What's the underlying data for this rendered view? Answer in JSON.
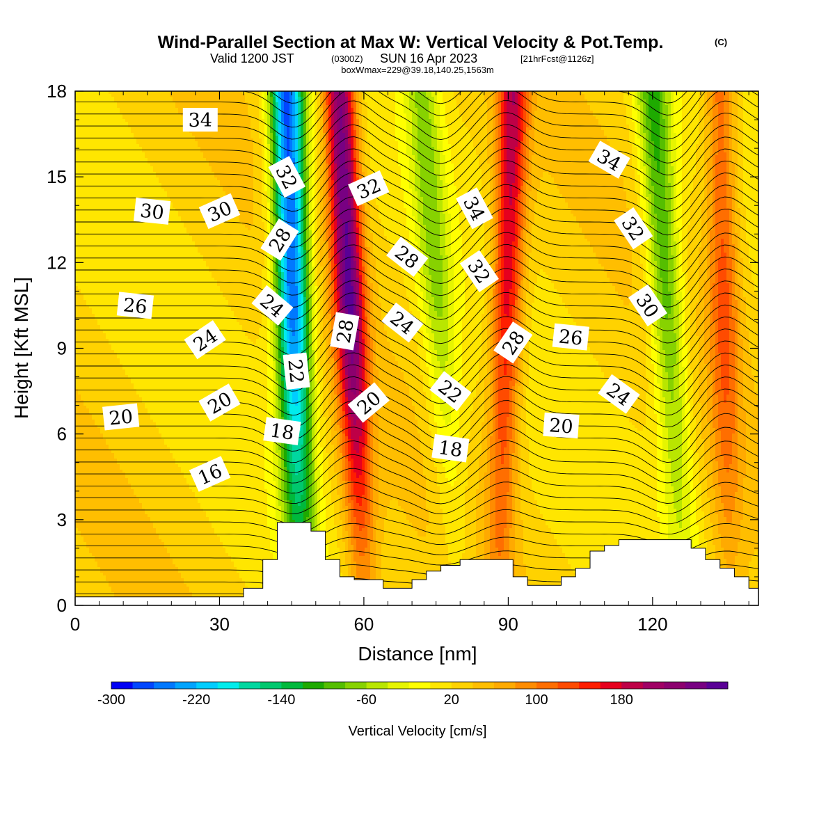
{
  "header": {
    "title": "Wind-Parallel Section at Max W: Vertical Velocity & Pot.Temp.",
    "title_mark": "(C)",
    "valid_prefix": "Valid 1200 JST",
    "valid_zulu": "(0300Z)",
    "valid_date": "SUN 16 Apr 2023",
    "forecast_tag": "[21hrFcst@1126z]",
    "box_info": "boxWmax=229@39.18,140.25,1563m"
  },
  "chart_data": {
    "type": "heatmap",
    "xlabel": "Distance [nm]",
    "ylabel": "Height [Kft MSL]",
    "xlim": [
      0,
      142
    ],
    "ylim": [
      0,
      18
    ],
    "x_ticks": [
      0,
      30,
      60,
      90,
      120
    ],
    "y_ticks": [
      0,
      3,
      6,
      9,
      12,
      15,
      18
    ],
    "grid": false,
    "colorbar": {
      "title": "Vertical Velocity [cm/s]",
      "levels_min": -300,
      "levels_step": 20,
      "labels": [
        "-300",
        "-220",
        "-140",
        "-60",
        "20",
        "100",
        "180"
      ],
      "colors": [
        "#0000f5",
        "#0046ff",
        "#0078ff",
        "#00a4ff",
        "#00cdff",
        "#00ecec",
        "#00d7a0",
        "#00c86e",
        "#00b93c",
        "#1eaa00",
        "#55be00",
        "#87d200",
        "#b9e600",
        "#e6f500",
        "#ffff00",
        "#ffe600",
        "#ffd200",
        "#ffbe00",
        "#ffaa00",
        "#ff8c00",
        "#ff6e00",
        "#ff4b00",
        "#ff1e00",
        "#e6001e",
        "#be0046",
        "#a00064",
        "#8c006e",
        "#780082",
        "#5a0096"
      ]
    },
    "vertical_velocity_features": [
      {
        "kind": "downdraft",
        "x_center_at_bottom": 47,
        "x_center_at_top": 44,
        "peak_cm_s": -300
      },
      {
        "kind": "updraft",
        "x_center_at_bottom": 60,
        "x_center_at_top": 55,
        "peak_cm_s": 229
      },
      {
        "kind": "downdraft",
        "x_center_at_bottom": 80,
        "x_center_at_top": 72,
        "peak_cm_s": -80
      },
      {
        "kind": "updraft",
        "x_center_at_bottom": 88,
        "x_center_at_top": 91,
        "peak_cm_s": 160
      },
      {
        "kind": "downdraft",
        "x_center_at_bottom": 127,
        "x_center_at_top": 120,
        "peak_cm_s": -130
      },
      {
        "kind": "updraft",
        "x_center_at_bottom": 136,
        "x_center_at_top": 134,
        "peak_cm_s": 100
      }
    ],
    "terrain_kft": {
      "x": [
        0,
        10,
        20,
        30,
        33,
        35,
        37,
        39,
        42,
        45,
        49,
        52,
        55,
        58,
        61,
        64,
        67,
        70,
        73,
        76,
        80,
        84,
        88,
        91,
        94,
        97,
        101,
        104,
        107,
        110,
        113,
        117,
        121,
        125,
        128,
        131,
        134,
        137,
        140,
        142
      ],
      "y": [
        0.3,
        0.3,
        0.3,
        0.3,
        0.3,
        0.6,
        0.6,
        1.6,
        2.9,
        2.9,
        2.6,
        1.6,
        1.0,
        0.9,
        0.9,
        0.6,
        0.6,
        0.9,
        1.2,
        1.4,
        1.6,
        1.6,
        1.6,
        1.0,
        0.7,
        0.7,
        1.0,
        1.3,
        1.9,
        2.1,
        2.3,
        2.3,
        2.3,
        2.3,
        2.0,
        1.6,
        1.3,
        1.0,
        0.6,
        0.6
      ]
    },
    "potential_temperature_labels": [
      {
        "text": "34",
        "x": 26,
        "y": 17.0,
        "angle": 0
      },
      {
        "text": "30",
        "x": 16,
        "y": 13.8,
        "angle": 6
      },
      {
        "text": "30",
        "x": 30,
        "y": 13.8,
        "angle": -24
      },
      {
        "text": "26",
        "x": 12.5,
        "y": 10.5,
        "angle": 6
      },
      {
        "text": "24",
        "x": 27,
        "y": 9.3,
        "angle": -34
      },
      {
        "text": "20",
        "x": 9.5,
        "y": 6.6,
        "angle": -6
      },
      {
        "text": "20",
        "x": 30,
        "y": 7.1,
        "angle": -30
      },
      {
        "text": "16",
        "x": 28,
        "y": 4.6,
        "angle": -24
      },
      {
        "text": "32",
        "x": 44,
        "y": 15.0,
        "angle": 62
      },
      {
        "text": "28",
        "x": 42.5,
        "y": 12.8,
        "angle": -58
      },
      {
        "text": "24",
        "x": 41,
        "y": 10.5,
        "angle": 40
      },
      {
        "text": "22",
        "x": 46,
        "y": 8.2,
        "angle": 84
      },
      {
        "text": "18",
        "x": 43,
        "y": 6.1,
        "angle": 8
      },
      {
        "text": "32",
        "x": 61,
        "y": 14.6,
        "angle": -24
      },
      {
        "text": "28",
        "x": 56,
        "y": 9.6,
        "angle": -80
      },
      {
        "text": "20",
        "x": 61,
        "y": 7.1,
        "angle": -40
      },
      {
        "text": "28",
        "x": 69,
        "y": 12.2,
        "angle": 38
      },
      {
        "text": "24",
        "x": 68,
        "y": 9.9,
        "angle": 38
      },
      {
        "text": "22",
        "x": 78,
        "y": 7.5,
        "angle": 38
      },
      {
        "text": "18",
        "x": 78,
        "y": 5.5,
        "angle": 8
      },
      {
        "text": "34",
        "x": 83,
        "y": 13.9,
        "angle": 62
      },
      {
        "text": "32",
        "x": 84,
        "y": 11.7,
        "angle": 56
      },
      {
        "text": "28",
        "x": 91,
        "y": 9.2,
        "angle": -56
      },
      {
        "text": "26",
        "x": 103,
        "y": 9.4,
        "angle": 6
      },
      {
        "text": "20",
        "x": 101,
        "y": 6.3,
        "angle": 4
      },
      {
        "text": "34",
        "x": 111,
        "y": 15.6,
        "angle": 30
      },
      {
        "text": "32",
        "x": 116,
        "y": 13.2,
        "angle": 56
      },
      {
        "text": "30",
        "x": 119,
        "y": 10.5,
        "angle": 56
      },
      {
        "text": "24",
        "x": 113,
        "y": 7.4,
        "angle": 36
      }
    ]
  }
}
